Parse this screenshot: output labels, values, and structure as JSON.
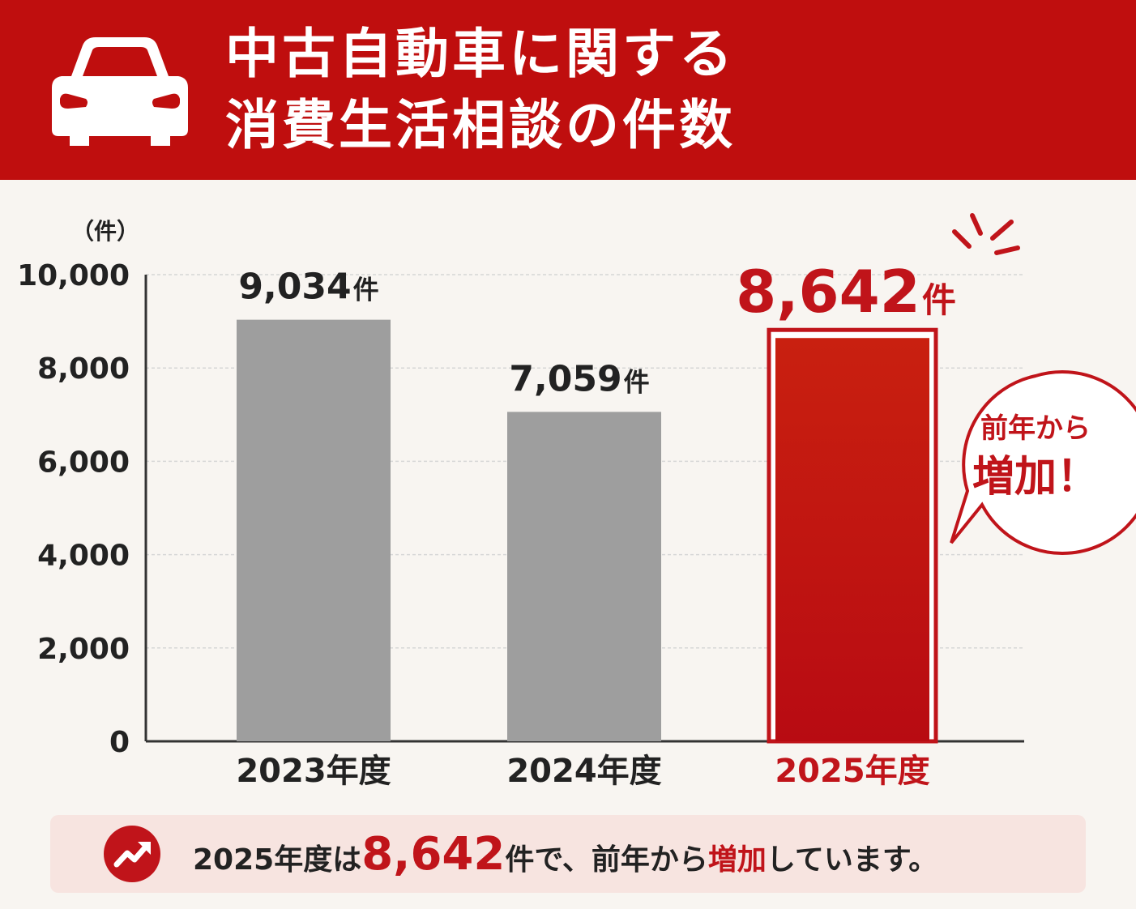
{
  "header": {
    "title_line1": "中古自動車に関する",
    "title_line2": "消費生活相談の件数",
    "icon": "car-icon"
  },
  "colors": {
    "brand_red": "#bf0e0e",
    "bar_gray": "#9e9e9e",
    "highlight_red": "#c0141a"
  },
  "chart_data": {
    "type": "bar",
    "title": "中古自動車に関する消費生活相談の件数",
    "ylabel": "（件）",
    "xlabel": "",
    "ylim": [
      0,
      10000
    ],
    "yticks": [
      0,
      2000,
      4000,
      6000,
      8000,
      10000
    ],
    "ytick_labels": [
      "0",
      "2,000",
      "4,000",
      "6,000",
      "8,000",
      "10,000"
    ],
    "categories": [
      "2023年度",
      "2024年度",
      "2025年度"
    ],
    "values": [
      9034,
      7059,
      8642
    ],
    "value_labels": [
      "9,034",
      "7,059",
      "8,642"
    ],
    "value_unit": "件",
    "highlight_index": 2,
    "grid": true,
    "annotation": {
      "line1": "前年から",
      "line2": "増加！"
    }
  },
  "summary": {
    "icon": "trend-up-icon",
    "prefix": "2025年度は",
    "number": "8,642",
    "middle": "件で、前年から",
    "highlight": "増加",
    "suffix": "しています。"
  }
}
